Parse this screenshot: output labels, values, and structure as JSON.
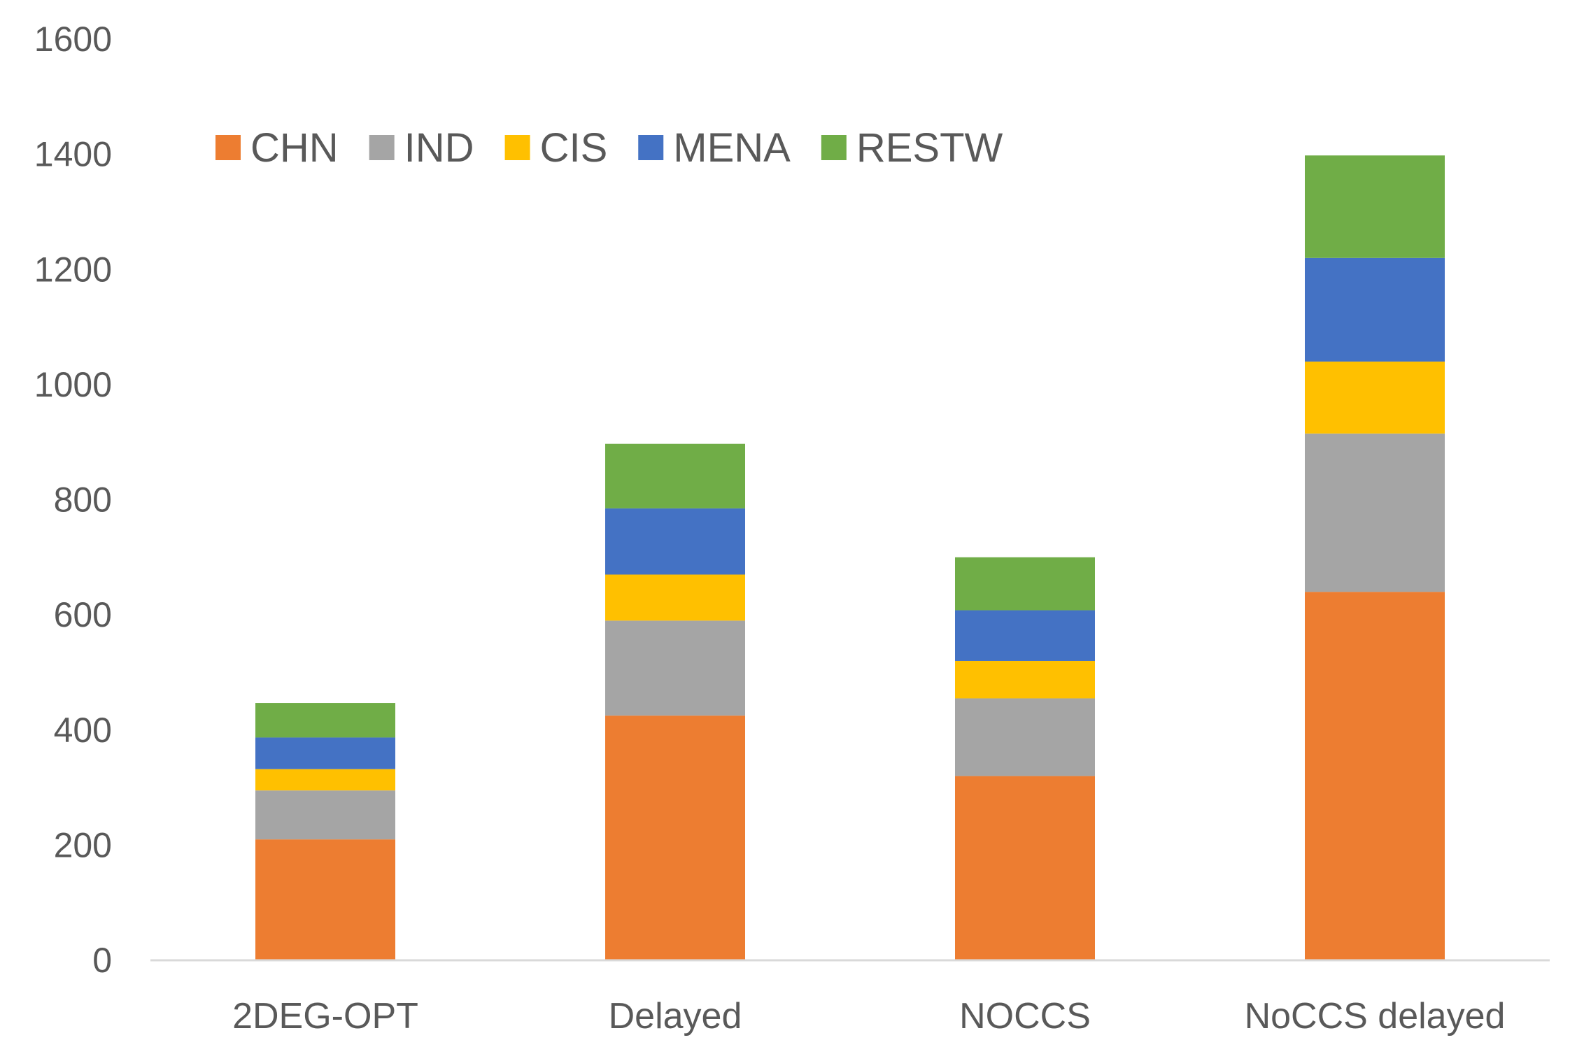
{
  "chart_data": {
    "type": "bar",
    "stacked": true,
    "title": "",
    "xlabel": "",
    "ylabel": "",
    "ylim": [
      0,
      1600
    ],
    "yticks": [
      0,
      200,
      400,
      600,
      800,
      1000,
      1200,
      1400,
      1600
    ],
    "grid": false,
    "legend_position": "top-left",
    "categories": [
      "2DEG-OPT",
      "Delayed",
      "NOCCS",
      "NoCCS delayed"
    ],
    "series": [
      {
        "name": "CHN",
        "color": "#ED7D31",
        "values": [
          210,
          425,
          320,
          640
        ]
      },
      {
        "name": "IND",
        "color": "#A5A5A5",
        "values": [
          85,
          165,
          135,
          275
        ]
      },
      {
        "name": "CIS",
        "color": "#FFC000",
        "values": [
          37,
          80,
          65,
          125
        ]
      },
      {
        "name": "MENA",
        "color": "#4472C4",
        "values": [
          55,
          115,
          88,
          180
        ]
      },
      {
        "name": "RESTW",
        "color": "#70AD47",
        "values": [
          60,
          112,
          92,
          178
        ]
      }
    ]
  }
}
